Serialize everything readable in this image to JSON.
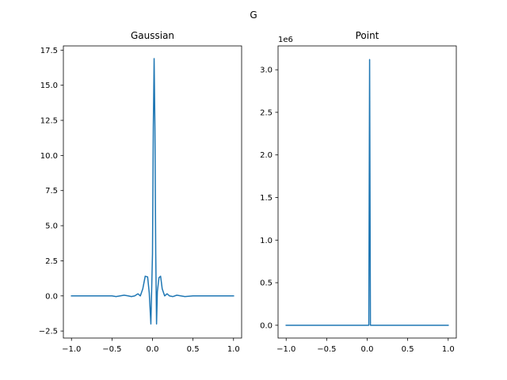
{
  "figure_title": "G",
  "line_color": "#1f77b4",
  "chart_data": [
    {
      "type": "line",
      "title": "Gaussian",
      "xlabel": "",
      "ylabel": "",
      "xlim": [
        -1.1,
        1.1
      ],
      "ylim": [
        -3.0,
        17.8
      ],
      "grid": false,
      "xticks": [
        -1.0,
        -0.5,
        0.0,
        0.5,
        1.0
      ],
      "xtick_labels": [
        "−1.0",
        "−0.5",
        "0.0",
        "0.5",
        "1.0"
      ],
      "yticks": [
        -2.5,
        0.0,
        2.5,
        5.0,
        7.5,
        10.0,
        12.5,
        15.0,
        17.5
      ],
      "ytick_labels": [
        "−2.5",
        "0.0",
        "2.5",
        "5.0",
        "7.5",
        "10.0",
        "12.5",
        "15.0",
        "17.5"
      ],
      "offset_label": "",
      "series": [
        {
          "x": [
            -1.0,
            -0.8,
            -0.6,
            -0.5,
            -0.45,
            -0.4,
            -0.35,
            -0.3,
            -0.26,
            -0.22,
            -0.18,
            -0.15,
            -0.12,
            -0.09,
            -0.06,
            -0.04,
            -0.02,
            0.0,
            0.01,
            0.02,
            0.03,
            0.04,
            0.05,
            0.06,
            0.08,
            0.1,
            0.12,
            0.15,
            0.18,
            0.21,
            0.25,
            0.3,
            0.35,
            0.4,
            0.5,
            0.6,
            0.8,
            1.0
          ],
          "y": [
            0.0,
            0.0,
            0.0,
            0.0,
            -0.05,
            0.0,
            0.05,
            0.0,
            -0.05,
            0.0,
            0.15,
            0.0,
            0.5,
            1.4,
            1.35,
            0.2,
            -2.0,
            3.0,
            12.0,
            16.9,
            12.0,
            3.0,
            -2.0,
            0.3,
            1.3,
            1.4,
            0.5,
            0.0,
            0.15,
            0.0,
            -0.05,
            0.05,
            0.0,
            -0.05,
            0.0,
            0.0,
            0.0,
            0.0
          ]
        }
      ]
    },
    {
      "type": "line",
      "title": "Point",
      "xlabel": "",
      "ylabel": "",
      "xlim": [
        -1.1,
        1.1
      ],
      "ylim": [
        -150000,
        3280000
      ],
      "grid": false,
      "xticks": [
        -1.0,
        -0.5,
        0.0,
        0.5,
        1.0
      ],
      "xtick_labels": [
        "−1.0",
        "−0.5",
        "0.0",
        "0.5",
        "1.0"
      ],
      "yticks": [
        0,
        500000,
        1000000,
        1500000,
        2000000,
        2500000,
        3000000
      ],
      "ytick_labels": [
        "0.0",
        "0.5",
        "1.0",
        "1.5",
        "2.0",
        "2.5",
        "3.0"
      ],
      "offset_label": "1e6",
      "series": [
        {
          "x": [
            -1.0,
            0.0,
            0.01,
            0.02,
            0.03,
            0.04,
            0.05,
            1.0
          ],
          "y": [
            0,
            0,
            0,
            0,
            3120000,
            0,
            0,
            0
          ]
        }
      ]
    }
  ]
}
